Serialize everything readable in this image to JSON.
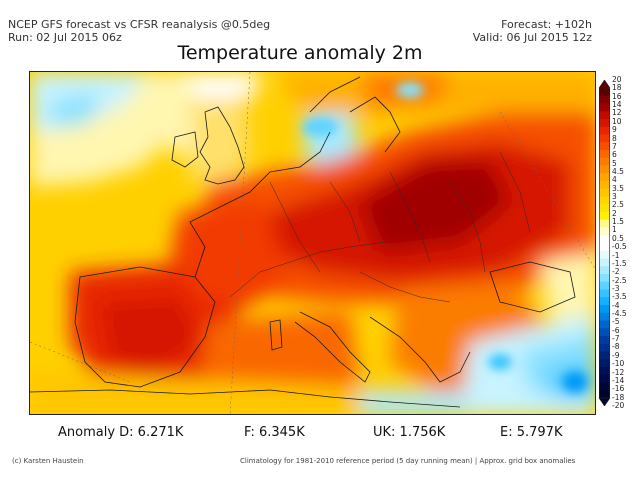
{
  "header": {
    "line1_left": "NCEP GFS forecast vs CFSR reanalysis @0.5deg",
    "line2_left": "Run: 02 Jul 2015 06z",
    "line1_right": "Forecast: +102h",
    "line2_right": "Valid: 06 Jul 2015 12z"
  },
  "title": "Temperature anomaly 2m",
  "colorbar": {
    "labels": [
      "20",
      "18",
      "16",
      "14",
      "12",
      "10",
      "9",
      "8",
      "7",
      "6",
      "5",
      "4.5",
      "4",
      "3.5",
      "3",
      "2.5",
      "2",
      "1.5",
      "1",
      "0.5",
      "-0.5",
      "-1",
      "-1.5",
      "-2",
      "-2.5",
      "-3",
      "-3.5",
      "-4",
      "-4.5",
      "-5",
      "-6",
      "-7",
      "-8",
      "-9",
      "-10",
      "-12",
      "-14",
      "-16",
      "-18",
      "-20"
    ],
    "warm_colors": [
      "#5a0000",
      "#7d0000",
      "#a00000",
      "#bf0a00",
      "#d61500",
      "#e82500",
      "#f23a00",
      "#f65000",
      "#f96800",
      "#fb7d00",
      "#fd9000",
      "#ffa500",
      "#ffb600",
      "#ffc600",
      "#ffd600",
      "#ffe300",
      "#fff000",
      "#fff88a",
      "#fffccd",
      "#ffffff"
    ],
    "cold_colors": [
      "#ffffff",
      "#e6fbff",
      "#c8f3ff",
      "#a8ebff",
      "#86e0ff",
      "#5fd3ff",
      "#35c3ff",
      "#16b0ff",
      "#0098f5",
      "#0080e0",
      "#0066cc",
      "#0050b6",
      "#003ca0",
      "#00308c",
      "#002478",
      "#001a66",
      "#001055",
      "#000a46",
      "#000638",
      "#00032a"
    ]
  },
  "stats": {
    "anomaly_d": "Anomaly D: 6.271K",
    "f": "F: 6.345K",
    "uk": "UK: 1.756K",
    "e": "E: 5.797K"
  },
  "footer": {
    "credit": "(c) Karsten Haustein",
    "note": "Climatology for 1981-2010 reference period (5 day running mean) | Approx. grid box anomalies"
  }
}
